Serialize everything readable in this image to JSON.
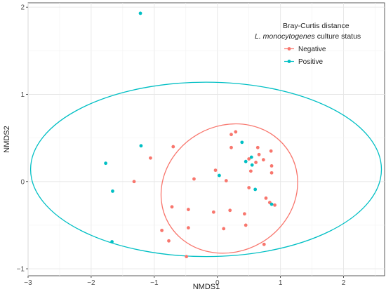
{
  "chart_data": {
    "type": "scatter",
    "title": "",
    "xlabel": "NMDS1",
    "ylabel": "NMDS2",
    "xlim": [
      -3.0,
      2.65
    ],
    "ylim": [
      -1.08,
      2.05
    ],
    "x_ticks": [
      -3,
      -2,
      -1,
      0,
      1,
      2
    ],
    "y_ticks": [
      -1,
      0,
      1,
      2
    ],
    "grid": true,
    "legend_position": "top-right",
    "legend": {
      "title_line1": "Bray-Curtis distance",
      "title_line2_italic": "L. monocytogenes",
      "title_line2_rest": " culture status"
    },
    "series": [
      {
        "name": "Negative",
        "color": "#F8766D",
        "points": [
          {
            "x": 0.22,
            "y": 0.54
          },
          {
            "x": 0.29,
            "y": 0.57
          },
          {
            "x": -0.7,
            "y": 0.4
          },
          {
            "x": 0.22,
            "y": 0.39
          },
          {
            "x": -1.06,
            "y": 0.27
          },
          {
            "x": 0.64,
            "y": 0.39
          },
          {
            "x": 0.85,
            "y": 0.35
          },
          {
            "x": 0.66,
            "y": 0.31
          },
          {
            "x": 0.5,
            "y": 0.26
          },
          {
            "x": 0.73,
            "y": 0.25
          },
          {
            "x": 0.61,
            "y": 0.22
          },
          {
            "x": 0.86,
            "y": 0.18
          },
          {
            "x": -0.03,
            "y": 0.13
          },
          {
            "x": 0.53,
            "y": 0.12
          },
          {
            "x": 0.86,
            "y": 0.1
          },
          {
            "x": -0.37,
            "y": 0.03
          },
          {
            "x": 0.14,
            "y": 0.01
          },
          {
            "x": -1.32,
            "y": 0.0
          },
          {
            "x": 0.5,
            "y": -0.07
          },
          {
            "x": 0.77,
            "y": -0.19
          },
          {
            "x": 0.83,
            "y": -0.24
          },
          {
            "x": 0.91,
            "y": -0.27
          },
          {
            "x": -0.72,
            "y": -0.29
          },
          {
            "x": -0.46,
            "y": -0.32
          },
          {
            "x": 0.2,
            "y": -0.33
          },
          {
            "x": -0.06,
            "y": -0.35
          },
          {
            "x": 0.43,
            "y": -0.37
          },
          {
            "x": 0.45,
            "y": -0.5
          },
          {
            "x": -0.46,
            "y": -0.53
          },
          {
            "x": 0.1,
            "y": -0.54
          },
          {
            "x": -0.88,
            "y": -0.56
          },
          {
            "x": -0.77,
            "y": -0.68
          },
          {
            "x": 0.74,
            "y": -0.72
          },
          {
            "x": -0.49,
            "y": -0.86
          }
        ],
        "ellipse": {
          "cx": 0.19,
          "cy": -0.08,
          "rx": 1.11,
          "ry": 0.72,
          "angle_deg": 30
        }
      },
      {
        "name": "Positive",
        "color": "#00BFC4",
        "points": [
          {
            "x": -1.22,
            "y": 1.93
          },
          {
            "x": -1.21,
            "y": 0.41
          },
          {
            "x": 0.39,
            "y": 0.45
          },
          {
            "x": 0.54,
            "y": 0.28
          },
          {
            "x": 0.45,
            "y": 0.23
          },
          {
            "x": 0.55,
            "y": 0.19
          },
          {
            "x": -1.77,
            "y": 0.21
          },
          {
            "x": 0.03,
            "y": 0.07
          },
          {
            "x": -1.66,
            "y": -0.11
          },
          {
            "x": 0.6,
            "y": -0.09
          },
          {
            "x": 0.86,
            "y": -0.26
          },
          {
            "x": -1.67,
            "y": -0.69
          }
        ],
        "ellipse": {
          "cx": -0.18,
          "cy": 0.14,
          "rx": 2.78,
          "ry": 1.0,
          "angle_deg": 0
        }
      }
    ]
  }
}
